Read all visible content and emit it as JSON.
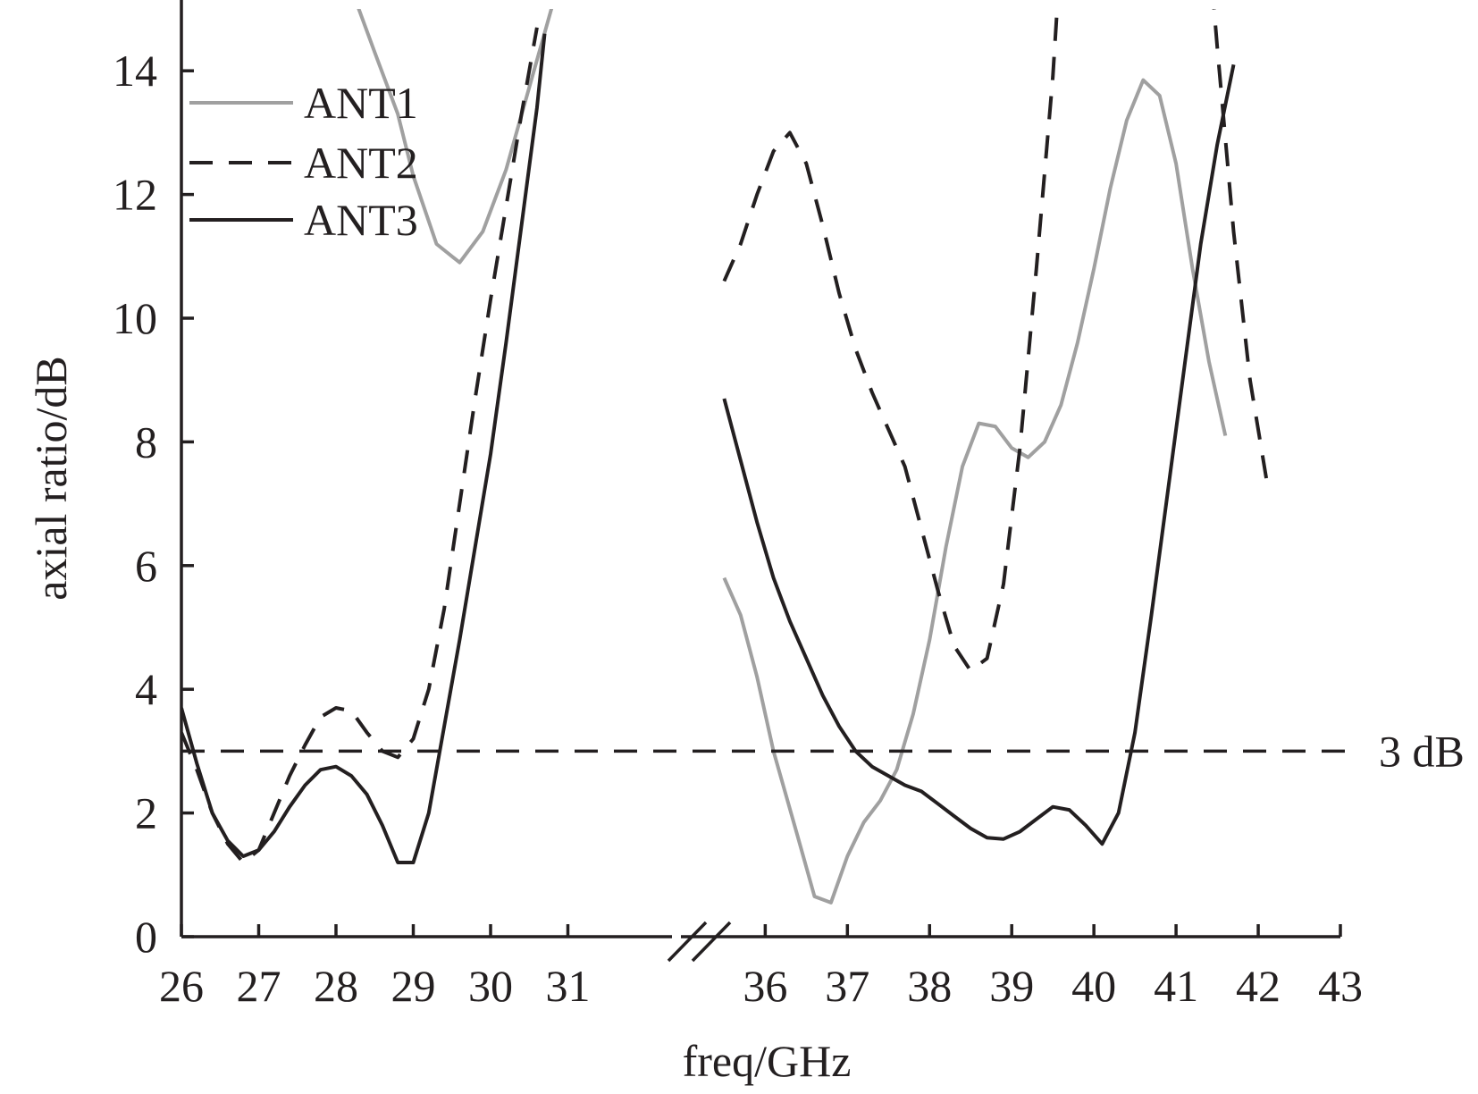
{
  "chart_data": {
    "type": "line",
    "title": "",
    "xlabel": "freq/GHz",
    "ylabel": "axial ratio/dB",
    "ylim": [
      0,
      15
    ],
    "x_axis_broken": true,
    "x_segments": [
      [
        26,
        32
      ],
      [
        35.3,
        43
      ]
    ],
    "xticks": [
      26,
      27,
      28,
      29,
      30,
      31,
      36,
      37,
      38,
      39,
      40,
      41,
      42,
      43
    ],
    "yticks": [
      0,
      2,
      4,
      6,
      8,
      10,
      12,
      14
    ],
    "grid": false,
    "legend_position": "top-left",
    "reference_line": {
      "y": 3,
      "label": "3 dB",
      "color": "#231f20",
      "style": "dashed"
    },
    "series": [
      {
        "name": "ANT1",
        "color": "#a0a0a0",
        "style": "solid",
        "segments": [
          [
            [
              30.9,
              15.5
            ],
            [
              30.2,
              12.4
            ],
            [
              29.9,
              11.4
            ],
            [
              29.6,
              10.9
            ],
            [
              29.3,
              11.2
            ],
            [
              29.0,
              12.3
            ],
            [
              28.8,
              13.3
            ],
            [
              28.5,
              14.3
            ],
            [
              28.0,
              16.0
            ]
          ],
          [
            [
              35.5,
              5.8
            ],
            [
              35.7,
              5.2
            ],
            [
              35.9,
              4.2
            ],
            [
              36.1,
              3.0
            ],
            [
              36.4,
              1.6
            ],
            [
              36.6,
              0.65
            ],
            [
              36.8,
              0.55
            ],
            [
              37.0,
              1.3
            ],
            [
              37.2,
              1.85
            ],
            [
              37.4,
              2.2
            ],
            [
              37.6,
              2.7
            ],
            [
              37.8,
              3.6
            ],
            [
              38.0,
              4.8
            ],
            [
              38.2,
              6.3
            ],
            [
              38.4,
              7.6
            ],
            [
              38.6,
              8.3
            ],
            [
              38.8,
              8.25
            ],
            [
              39.0,
              7.9
            ],
            [
              39.2,
              7.75
            ],
            [
              39.4,
              8.0
            ],
            [
              39.6,
              8.6
            ],
            [
              39.8,
              9.6
            ],
            [
              40.0,
              10.8
            ],
            [
              40.2,
              12.1
            ],
            [
              40.4,
              13.2
            ],
            [
              40.6,
              13.85
            ],
            [
              40.8,
              13.6
            ],
            [
              41.0,
              12.5
            ],
            [
              41.2,
              10.8
            ],
            [
              41.4,
              9.3
            ],
            [
              41.6,
              8.1
            ]
          ]
        ]
      },
      {
        "name": "ANT2",
        "color": "#231f20",
        "style": "dashed",
        "segments": [
          [
            [
              26.0,
              3.3
            ],
            [
              26.2,
              2.7
            ],
            [
              26.4,
              2.0
            ],
            [
              26.6,
              1.5
            ],
            [
              26.8,
              1.2
            ],
            [
              27.0,
              1.4
            ],
            [
              27.2,
              2.0
            ],
            [
              27.4,
              2.6
            ],
            [
              27.6,
              3.1
            ],
            [
              27.8,
              3.55
            ],
            [
              28.0,
              3.7
            ],
            [
              28.2,
              3.65
            ],
            [
              28.4,
              3.3
            ],
            [
              28.6,
              3.0
            ],
            [
              28.8,
              2.9
            ],
            [
              29.0,
              3.2
            ],
            [
              29.2,
              4.0
            ],
            [
              29.4,
              5.3
            ],
            [
              29.6,
              7.0
            ],
            [
              29.8,
              8.7
            ],
            [
              30.0,
              10.3
            ],
            [
              30.2,
              11.8
            ],
            [
              30.4,
              13.3
            ],
            [
              30.6,
              14.7
            ]
          ],
          [
            [
              35.5,
              10.6
            ],
            [
              35.7,
              11.2
            ],
            [
              35.9,
              12.0
            ],
            [
              36.1,
              12.7
            ],
            [
              36.3,
              13.0
            ],
            [
              36.5,
              12.5
            ],
            [
              36.7,
              11.5
            ],
            [
              36.9,
              10.4
            ],
            [
              37.1,
              9.5
            ],
            [
              37.3,
              8.8
            ],
            [
              37.5,
              8.2
            ],
            [
              37.7,
              7.6
            ],
            [
              37.9,
              6.6
            ],
            [
              38.1,
              5.6
            ],
            [
              38.3,
              4.7
            ],
            [
              38.5,
              4.3
            ],
            [
              38.7,
              4.5
            ],
            [
              38.9,
              5.7
            ],
            [
              39.1,
              7.9
            ],
            [
              39.3,
              10.8
            ],
            [
              39.5,
              13.9
            ],
            [
              39.6,
              16.0
            ]
          ],
          [
            [
              41.4,
              16.0
            ],
            [
              41.5,
              14.4
            ],
            [
              41.7,
              11.4
            ],
            [
              41.9,
              9.0
            ],
            [
              42.1,
              7.4
            ]
          ]
        ]
      },
      {
        "name": "ANT3",
        "color": "#231f20",
        "style": "solid",
        "segments": [
          [
            [
              26.0,
              3.7
            ],
            [
              26.2,
              2.8
            ],
            [
              26.4,
              2.0
            ],
            [
              26.6,
              1.55
            ],
            [
              26.8,
              1.3
            ],
            [
              27.0,
              1.4
            ],
            [
              27.2,
              1.7
            ],
            [
              27.4,
              2.1
            ],
            [
              27.6,
              2.45
            ],
            [
              27.8,
              2.7
            ],
            [
              28.0,
              2.75
            ],
            [
              28.2,
              2.6
            ],
            [
              28.4,
              2.3
            ],
            [
              28.6,
              1.8
            ],
            [
              28.8,
              1.2
            ],
            [
              29.0,
              1.2
            ],
            [
              29.2,
              2.0
            ],
            [
              29.4,
              3.4
            ],
            [
              29.6,
              4.8
            ],
            [
              29.8,
              6.3
            ],
            [
              30.0,
              7.8
            ],
            [
              30.2,
              9.6
            ],
            [
              30.4,
              11.5
            ],
            [
              30.6,
              13.4
            ],
            [
              30.7,
              14.6
            ]
          ],
          [
            [
              35.5,
              8.7
            ],
            [
              35.7,
              7.7
            ],
            [
              35.9,
              6.7
            ],
            [
              36.1,
              5.8
            ],
            [
              36.3,
              5.1
            ],
            [
              36.5,
              4.5
            ],
            [
              36.7,
              3.9
            ],
            [
              36.9,
              3.4
            ],
            [
              37.1,
              3.0
            ],
            [
              37.3,
              2.75
            ],
            [
              37.5,
              2.6
            ],
            [
              37.7,
              2.45
            ],
            [
              37.9,
              2.35
            ],
            [
              38.1,
              2.15
            ],
            [
              38.3,
              1.95
            ],
            [
              38.5,
              1.75
            ],
            [
              38.7,
              1.6
            ],
            [
              38.9,
              1.58
            ],
            [
              39.1,
              1.7
            ],
            [
              39.3,
              1.9
            ],
            [
              39.5,
              2.1
            ],
            [
              39.7,
              2.05
            ],
            [
              39.9,
              1.8
            ],
            [
              40.1,
              1.5
            ],
            [
              40.3,
              2.0
            ],
            [
              40.5,
              3.3
            ],
            [
              40.7,
              5.2
            ],
            [
              40.9,
              7.2
            ],
            [
              41.1,
              9.2
            ],
            [
              41.3,
              11.2
            ],
            [
              41.5,
              12.8
            ],
            [
              41.7,
              14.1
            ]
          ]
        ]
      }
    ]
  }
}
